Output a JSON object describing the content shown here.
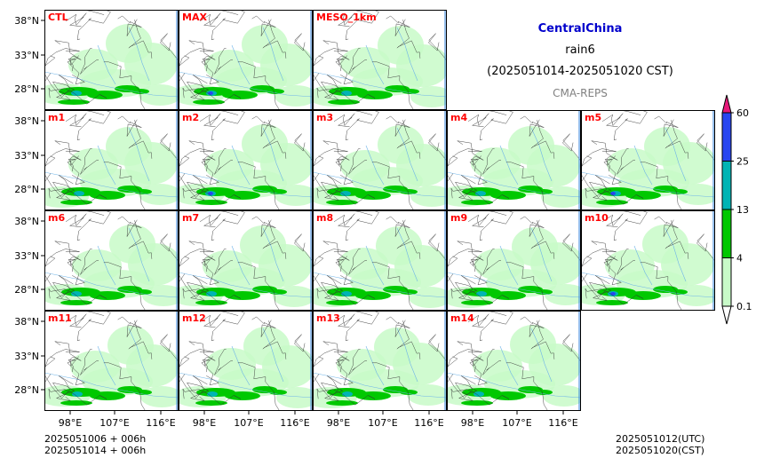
{
  "header": {
    "region": "CentralChina",
    "variable": "rain6",
    "period": "(2025051014-2025051020 CST)",
    "source": "CMA-REPS"
  },
  "panels": [
    {
      "label": "CTL",
      "row": 0,
      "col": 0
    },
    {
      "label": "MAX",
      "row": 0,
      "col": 1
    },
    {
      "label": "MESO_1km",
      "row": 0,
      "col": 2
    },
    {
      "label": "m1",
      "row": 1,
      "col": 0
    },
    {
      "label": "m2",
      "row": 1,
      "col": 1
    },
    {
      "label": "m3",
      "row": 1,
      "col": 2
    },
    {
      "label": "m4",
      "row": 1,
      "col": 3
    },
    {
      "label": "m5",
      "row": 1,
      "col": 4
    },
    {
      "label": "m6",
      "row": 2,
      "col": 0
    },
    {
      "label": "m7",
      "row": 2,
      "col": 1
    },
    {
      "label": "m8",
      "row": 2,
      "col": 2
    },
    {
      "label": "m9",
      "row": 2,
      "col": 3
    },
    {
      "label": "m10",
      "row": 2,
      "col": 4
    },
    {
      "label": "m11",
      "row": 3,
      "col": 0
    },
    {
      "label": "m12",
      "row": 3,
      "col": 1
    },
    {
      "label": "m13",
      "row": 3,
      "col": 2
    },
    {
      "label": "m14",
      "row": 3,
      "col": 3
    }
  ],
  "lat_labels": [
    "38°N",
    "33°N",
    "28°N"
  ],
  "lon_labels": [
    "98°E",
    "107°E",
    "116°E"
  ],
  "colorbar": {
    "levels": [
      "0.1",
      "4",
      "13",
      "25",
      "60"
    ],
    "colors": [
      "#c8fac8",
      "#00c800",
      "#00b4b4",
      "#2846f0",
      "#e6197a"
    ]
  },
  "footer": {
    "init_line1": "2025051006  +  006h",
    "init_line2": "2025051014  +  006h",
    "valid_utc": "2025051012(UTC)",
    "valid_cst": "2025051020(CST)"
  },
  "palette": {
    "panel_label": "#ff0000",
    "region_title": "#0000cc",
    "source_text": "#808080"
  }
}
